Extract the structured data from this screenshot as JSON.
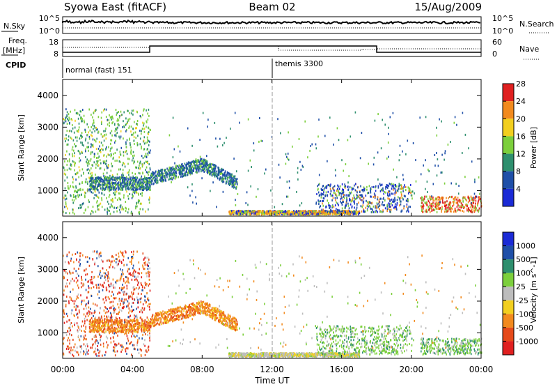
{
  "header": {
    "station": "Syowa East (fitACF)",
    "beam": "Beam 02",
    "date": "15/Aug/2009"
  },
  "status_panels": {
    "nsky_label": "N.Sky",
    "nsky_ticks": [
      "10^5",
      "10^0"
    ],
    "nsearch_label": "N.Search",
    "nsearch_ticks": [
      "10^5",
      "10^0"
    ],
    "freq_label": "Freq.",
    "freq_unit": "[MHz]",
    "freq_ticks": [
      "18",
      "8"
    ],
    "nave_label": "Nave",
    "nave_ticks": [
      "60",
      "0"
    ],
    "cpid_label": "CPID",
    "cpid_modes": [
      {
        "name": "normal (fast) 151",
        "start_hour": 0
      },
      {
        "name": "themis 3300",
        "start_hour": 12
      }
    ]
  },
  "chart_data": [
    {
      "type": "heatmap",
      "name": "power",
      "ylabel": "Slant Range [km]",
      "yticks": [
        "1000",
        "2000",
        "3000",
        "4000"
      ],
      "ylim": [
        200,
        4500
      ],
      "colorbar_label": "Power [dB]",
      "colorbar_ticks": [
        "4",
        "8",
        "12",
        "16",
        "20",
        "24",
        "28"
      ],
      "colors": [
        "#1b2bd6",
        "#1f4fa8",
        "#2e8f6e",
        "#7ccf3c",
        "#f2cf1f",
        "#f28a1e",
        "#e02020"
      ]
    },
    {
      "type": "heatmap",
      "name": "velocity",
      "ylabel": "Slant Range [km]",
      "yticks": [
        "1000",
        "2000",
        "3000",
        "4000"
      ],
      "ylim": [
        200,
        4500
      ],
      "colorbar_label": "Velocity [m s^-1]",
      "colorbar_ticks": [
        "1000",
        "500",
        "100",
        "25",
        "-25",
        "-100",
        "-500",
        "-1000"
      ],
      "colors": [
        "#1b2bd6",
        "#1f4fa8",
        "#2e8f6e",
        "#7ccf3c",
        "#bdbdbd",
        "#f2cf1f",
        "#f28a1e",
        "#e64a1a",
        "#e02020"
      ]
    }
  ],
  "time_axis": {
    "label": "Time UT",
    "ticks": [
      "00:00",
      "04:00",
      "08:00",
      "12:00",
      "16:00",
      "20:00",
      "00:00"
    ]
  }
}
